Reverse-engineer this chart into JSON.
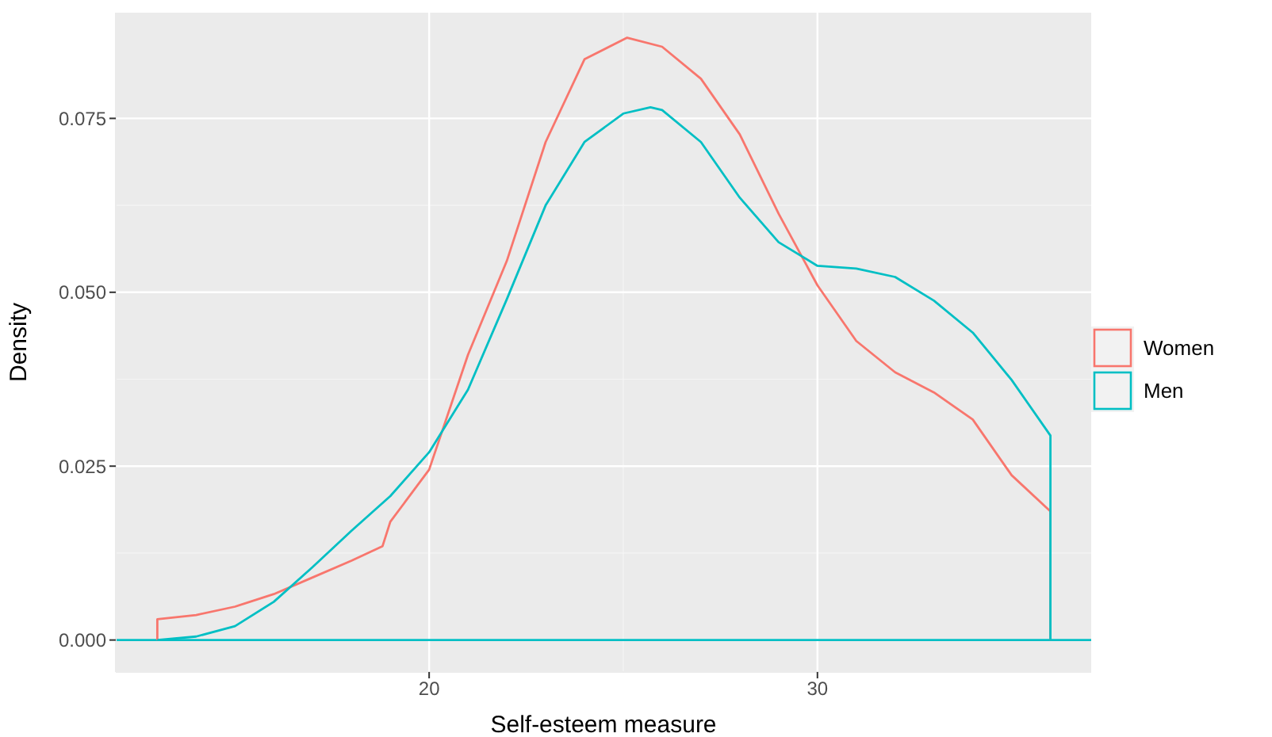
{
  "chart_data": {
    "type": "line",
    "xlabel": "Self-esteem measure",
    "ylabel": "Density",
    "xlim": [
      11.93,
      37.05
    ],
    "xticks": [
      20,
      30
    ],
    "ylim": [
      -0.0046,
      0.0902
    ],
    "yticks": [
      {
        "value": 0,
        "label": "0.000"
      },
      {
        "value": 0.025,
        "label": "0.025"
      },
      {
        "value": 0.05,
        "label": "0.050"
      },
      {
        "value": 0.075,
        "label": "0.075"
      }
    ],
    "grid": true,
    "ref_lines": [
      {
        "axis": "y",
        "value": 0,
        "color": "#00bfc4"
      }
    ],
    "legend": "right",
    "marker": "none",
    "line_style": "solid",
    "series": [
      {
        "name": "Women",
        "color": "#f8766d",
        "x": [
          13,
          13,
          14,
          15,
          16,
          17,
          18,
          18.8,
          19,
          20,
          21,
          22,
          23,
          24,
          25.1,
          26,
          27,
          28,
          29,
          30,
          31,
          32,
          33,
          34,
          35,
          36,
          36
        ],
        "values": [
          0,
          0.003,
          0.0036,
          0.0048,
          0.0066,
          0.009,
          0.0114,
          0.0135,
          0.017,
          0.0245,
          0.041,
          0.0545,
          0.0716,
          0.0835,
          0.0866,
          0.0853,
          0.0807,
          0.0727,
          0.0613,
          0.051,
          0.043,
          0.0385,
          0.0356,
          0.0317,
          0.0237,
          0.0185,
          0
        ]
      },
      {
        "name": "Men",
        "color": "#00bfc4",
        "x": [
          13,
          14,
          15,
          16,
          17,
          18,
          19,
          20,
          21,
          22,
          23,
          24,
          25,
          25.7,
          26,
          27,
          28,
          29,
          30,
          31,
          32,
          33,
          34,
          35,
          36,
          36
        ],
        "values": [
          0,
          0.0005,
          0.002,
          0.0055,
          0.0105,
          0.0157,
          0.0207,
          0.027,
          0.036,
          0.049,
          0.0625,
          0.0716,
          0.0757,
          0.0766,
          0.0762,
          0.0716,
          0.0636,
          0.0572,
          0.0538,
          0.0534,
          0.0522,
          0.0488,
          0.0442,
          0.0374,
          0.0294,
          0
        ]
      }
    ]
  }
}
